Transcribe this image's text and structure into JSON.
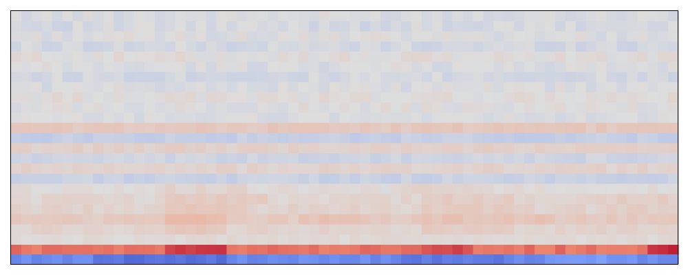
{
  "chart_data": {
    "type": "heatmap",
    "title": "",
    "xlabel": "",
    "ylabel": "",
    "colormap": "coolwarm",
    "value_range": [
      -1,
      1
    ],
    "grid": false,
    "legend": "none",
    "axis_ticks": "hidden",
    "n_columns": 65,
    "n_rows": 25,
    "rows": [
      {
        "base": -0.02,
        "amp": 0.05,
        "bumps": []
      },
      {
        "base": -0.04,
        "amp": 0.06,
        "bumps": []
      },
      {
        "base": -0.01,
        "amp": 0.05,
        "bumps": []
      },
      {
        "base": -0.05,
        "amp": 0.05,
        "bumps": []
      },
      {
        "base": 0.02,
        "amp": 0.05,
        "bumps": []
      },
      {
        "base": -0.02,
        "amp": 0.05,
        "bumps": []
      },
      {
        "base": -0.05,
        "amp": 0.05,
        "bumps": []
      },
      {
        "base": -0.02,
        "amp": 0.05,
        "bumps": []
      },
      {
        "base": 0.02,
        "amp": 0.05,
        "bumps": []
      },
      {
        "base": 0.0,
        "amp": 0.05,
        "bumps": []
      },
      {
        "base": -0.02,
        "amp": 0.04,
        "bumps": []
      },
      {
        "base": 0.16,
        "amp": 0.04,
        "bumps": []
      },
      {
        "base": -0.12,
        "amp": 0.04,
        "bumps": []
      },
      {
        "base": 0.1,
        "amp": 0.04,
        "bumps": []
      },
      {
        "base": -0.08,
        "amp": 0.04,
        "bumps": []
      },
      {
        "base": 0.08,
        "amp": 0.04,
        "bumps": []
      },
      {
        "base": -0.1,
        "amp": 0.04,
        "bumps": [
          [
            0,
            14,
            0.0
          ]
        ]
      },
      {
        "base": 0.02,
        "amp": 0.04,
        "bumps": [
          [
            15,
            22,
            0.06
          ],
          [
            38,
            45,
            0.05
          ]
        ]
      },
      {
        "base": 0.06,
        "amp": 0.04,
        "bumps": [
          [
            15,
            24,
            0.08
          ],
          [
            40,
            48,
            0.06
          ],
          [
            56,
            64,
            0.05
          ]
        ]
      },
      {
        "base": 0.08,
        "amp": 0.04,
        "bumps": [
          [
            15,
            22,
            0.08
          ],
          [
            40,
            50,
            0.05
          ],
          [
            58,
            64,
            0.05
          ]
        ]
      },
      {
        "base": 0.14,
        "amp": 0.04,
        "bumps": [
          [
            15,
            20,
            0.1
          ],
          [
            28,
            34,
            0.06
          ],
          [
            40,
            52,
            0.05
          ]
        ]
      },
      {
        "base": 0.08,
        "amp": 0.04,
        "bumps": [
          [
            15,
            20,
            0.08
          ],
          [
            40,
            48,
            0.04
          ]
        ]
      },
      {
        "base": 0.04,
        "amp": 0.03,
        "bumps": []
      },
      {
        "base": 0.62,
        "amp": 0.06,
        "bumps": [
          [
            15,
            20,
            0.2
          ],
          [
            40,
            44,
            0.15
          ],
          [
            62,
            64,
            0.25
          ]
        ]
      },
      {
        "base": -0.62,
        "amp": 0.06,
        "bumps": [
          [
            8,
            20,
            -0.15
          ],
          [
            38,
            48,
            -0.1
          ],
          [
            52,
            60,
            0.08
          ]
        ]
      }
    ]
  }
}
